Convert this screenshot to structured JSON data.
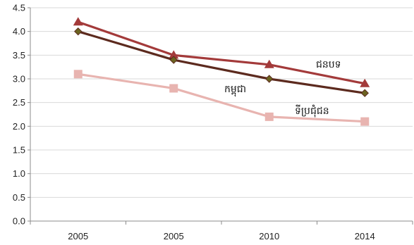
{
  "chart_data": {
    "type": "line",
    "title": "",
    "xlabel": "",
    "ylabel": "",
    "categories": [
      "2005",
      "2005",
      "2010",
      "2014"
    ],
    "ylim": [
      0,
      4.5
    ],
    "y_ticks": [
      "0.0",
      "0.5",
      "1.0",
      "1.5",
      "2.0",
      "2.5",
      "3.0",
      "3.5",
      "4.0",
      "4.5"
    ],
    "grid": true,
    "legend": "none",
    "series": [
      {
        "name": "ជនបទ",
        "values": [
          4.2,
          3.5,
          3.3,
          2.9
        ],
        "color": "#a33a3a",
        "marker": "triangle"
      },
      {
        "name": "កម្ពុជា",
        "values": [
          4.0,
          3.4,
          3.0,
          2.7
        ],
        "color": "#5c2a1e",
        "marker": "diamond",
        "marker_fill": "#6b6320"
      },
      {
        "name": "ទីប្រជុំជន",
        "values": [
          3.1,
          2.8,
          2.2,
          2.1
        ],
        "color": "#e8b4b0",
        "marker": "square"
      }
    ],
    "annotations": [
      {
        "text": "ជនបទ",
        "series": 0
      },
      {
        "text": "កម្ពុជា",
        "series": 1
      },
      {
        "text": "ទីប្រជុំជន",
        "series": 2
      }
    ]
  }
}
